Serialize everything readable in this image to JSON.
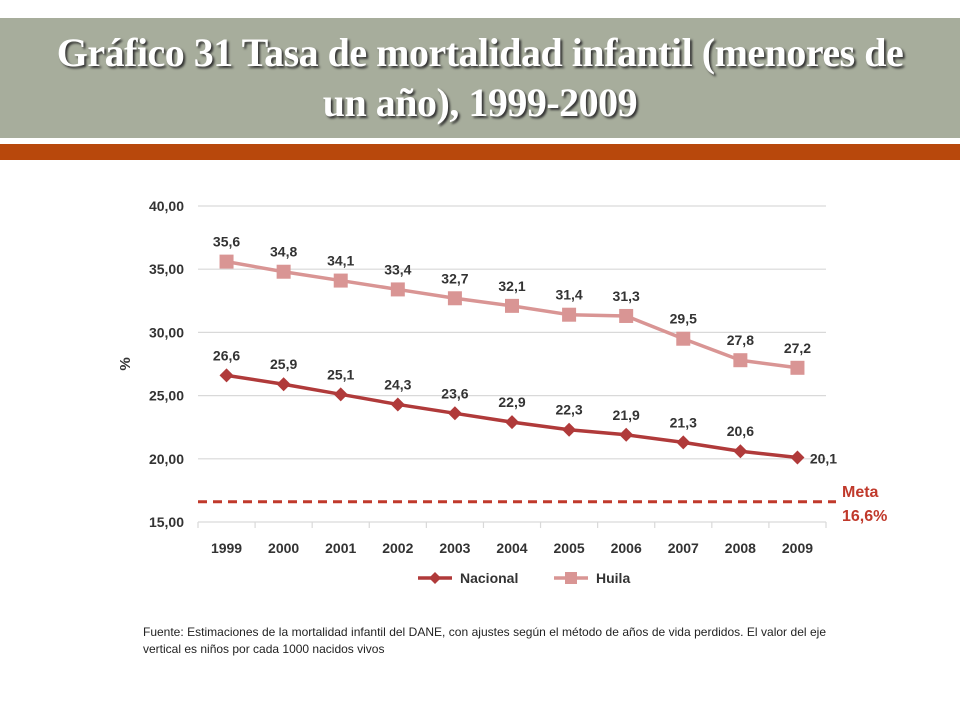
{
  "slide": {
    "title": "Gráfico 31 Tasa de mortalidad infantil (menores de un año), 1999-2009",
    "source_note": "Fuente: Estimaciones de la mortalidad infantil del DANE, con ajustes según el método de años de vida perdidos. El valor del eje vertical es niños por cada 1000 nacidos vivos"
  },
  "colors": {
    "nacional": "#b03a3a",
    "huila": "#d99594",
    "meta": "#c0392b",
    "grid": "#d9d9d9",
    "axis_text": "#333333"
  },
  "chart_data": {
    "type": "line",
    "title": "",
    "xlabel": "",
    "ylabel": "%",
    "ylim": [
      15,
      40
    ],
    "yticks": [
      15,
      20,
      25,
      30,
      35,
      40
    ],
    "ytick_labels": [
      "15,00",
      "20,00",
      "25,00",
      "30,00",
      "35,00",
      "40,00"
    ],
    "categories": [
      "1999",
      "2000",
      "2001",
      "2002",
      "2003",
      "2004",
      "2005",
      "2006",
      "2007",
      "2008",
      "2009"
    ],
    "series": [
      {
        "name": "Nacional",
        "marker": "diamond",
        "values": [
          26.6,
          25.9,
          25.1,
          24.3,
          23.6,
          22.9,
          22.3,
          21.9,
          21.3,
          20.6,
          20.1
        ],
        "labels": [
          "26,6",
          "25,9",
          "25,1",
          "24,3",
          "23,6",
          "22,9",
          "22,3",
          "21,9",
          "21,3",
          "20,6",
          "20,1"
        ]
      },
      {
        "name": "Huila",
        "marker": "square",
        "values": [
          35.6,
          34.8,
          34.1,
          33.4,
          32.7,
          32.1,
          31.4,
          31.3,
          29.5,
          27.8,
          27.2
        ],
        "labels": [
          "35,6",
          "34,8",
          "34,1",
          "33,4",
          "32,7",
          "32,1",
          "31,4",
          "31,3",
          "29,5",
          "27,8",
          "27,2"
        ]
      }
    ],
    "reference_line": {
      "value": 16.6,
      "label_line1": "Meta",
      "label_line2": "16,6%",
      "style": "dashed"
    },
    "legend": {
      "position": "bottom",
      "entries": [
        "Nacional",
        "Huila"
      ]
    },
    "grid": true
  }
}
